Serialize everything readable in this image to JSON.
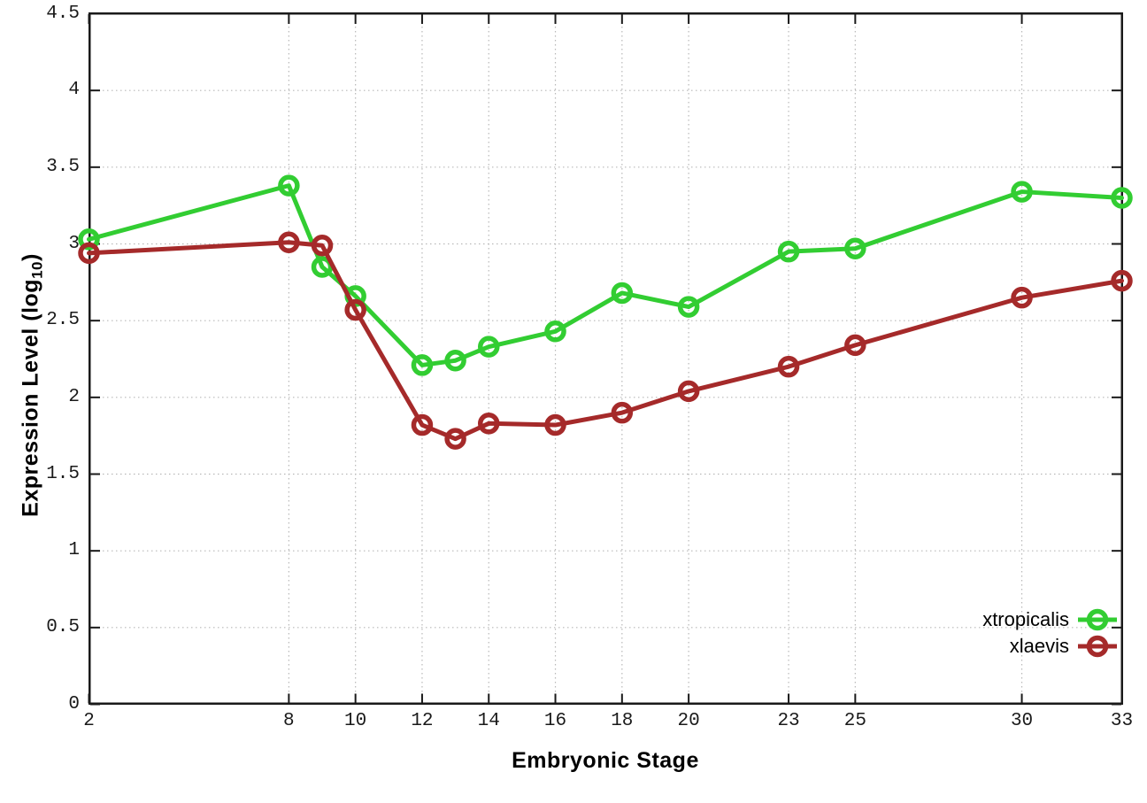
{
  "chart_data": {
    "type": "line",
    "title": "",
    "xlabel": "Embryonic Stage",
    "ylabel": "Expression Level (log10)",
    "ylabel_prefix": "Expression Level (log",
    "ylabel_sub": "10",
    "ylabel_suffix": ")",
    "xlim": [
      2,
      33
    ],
    "ylim": [
      0,
      4.5
    ],
    "x_ticks": [
      2,
      8,
      10,
      12,
      14,
      16,
      18,
      20,
      23,
      25,
      30,
      33
    ],
    "x_tick_labels": [
      "2",
      "8",
      "10",
      "12",
      "14",
      "16",
      "18",
      "20",
      "23",
      "25",
      "30",
      "33"
    ],
    "y_ticks": [
      0,
      0.5,
      1,
      1.5,
      2,
      2.5,
      3,
      3.5,
      4,
      4.5
    ],
    "y_tick_labels": [
      "0",
      "0.5",
      "1",
      "1.5",
      "2",
      "2.5",
      "3",
      "3.5",
      "4",
      "4.5"
    ],
    "grid": true,
    "legend_position": "inside-bottom-right",
    "x": [
      2,
      8,
      9,
      10,
      12,
      13,
      14,
      16,
      18,
      20,
      23,
      25,
      30,
      33
    ],
    "series": [
      {
        "name": "xtropicalis",
        "color": "#32cd32",
        "values": [
          3.03,
          3.38,
          2.85,
          2.66,
          2.21,
          2.24,
          2.33,
          2.43,
          2.68,
          2.59,
          2.95,
          2.97,
          3.34,
          3.3
        ]
      },
      {
        "name": "xlaevis",
        "color": "#a52a2a",
        "values": [
          2.94,
          3.01,
          2.99,
          2.57,
          1.82,
          1.73,
          1.83,
          1.82,
          1.9,
          2.04,
          2.2,
          2.34,
          2.65,
          2.76
        ]
      }
    ],
    "colors": {
      "axis": "#1a1a1a",
      "grid": "#b8b8b8",
      "background": "#ffffff",
      "text": "#000000"
    }
  }
}
